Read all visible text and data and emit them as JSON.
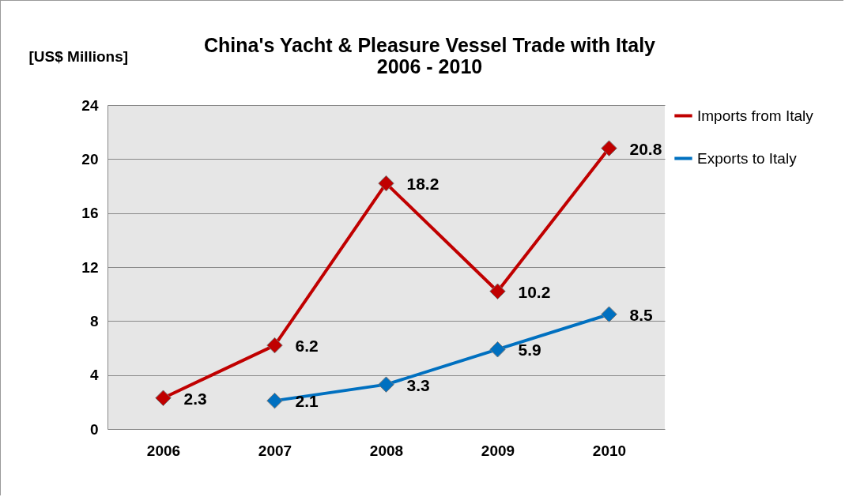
{
  "chart_data": {
    "type": "line",
    "title": "China's Yacht & Pleasure Vessel Trade with Italy",
    "subtitle": "2006 - 2010",
    "ylabel": "[US$ Millions]",
    "categories": [
      "2006",
      "2007",
      "2008",
      "2009",
      "2010"
    ],
    "series": [
      {
        "name": "Imports from Italy",
        "color": "#c00000",
        "values": [
          2.3,
          6.2,
          18.2,
          10.2,
          20.8
        ]
      },
      {
        "name": "Exports to Italy",
        "color": "#0070c0",
        "values": [
          null,
          2.1,
          3.3,
          5.9,
          8.5
        ]
      }
    ],
    "ylim": [
      0,
      24
    ],
    "yticks": [
      0,
      4,
      8,
      12,
      16,
      20,
      24
    ],
    "grid": "y",
    "legend": "right",
    "marker": "diamond",
    "line_style": "solid",
    "data_labels": true
  }
}
